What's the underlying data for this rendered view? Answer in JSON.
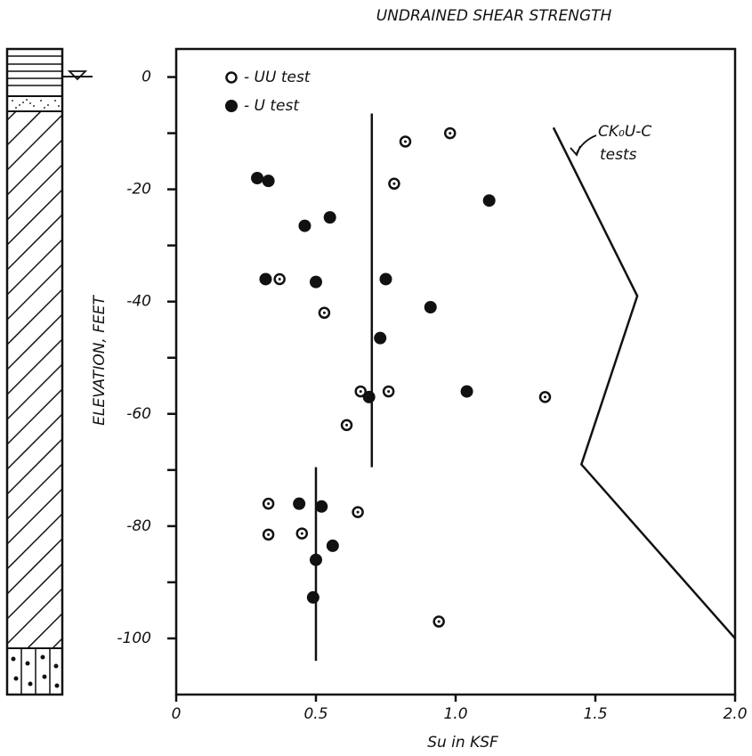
{
  "chart_data": {
    "type": "scatter",
    "title": "UNDRAINED SHEAR STRENGTH",
    "x_label": "Su in KSF",
    "y_label": "ELEVATION, FEET",
    "xlim": [
      0,
      2.0
    ],
    "ylim": [
      -110,
      5
    ],
    "xticks": [
      0,
      0.5,
      {
        "value": 1.0,
        "label": "1.0"
      },
      1.5,
      {
        "value": 2.0,
        "label": "2.0"
      }
    ],
    "yticks": [
      0,
      -20,
      -40,
      -60,
      -80,
      -100
    ],
    "y_minor_ticks": [
      -10,
      -30,
      -50,
      -70,
      -90
    ],
    "series": [
      {
        "name": "- UU test",
        "marker": "open",
        "color": "#111111",
        "x": [
          0.82,
          0.98,
          0.78,
          0.37,
          0.53,
          0.66,
          0.76,
          1.32,
          0.61,
          0.33,
          0.65,
          0.33,
          0.45,
          0.94
        ],
        "values": [
          -11.5,
          -10,
          -19,
          -36,
          -42,
          -56,
          -56,
          -57,
          -62,
          -76,
          -77.5,
          -81.5,
          -81.3,
          -97
        ]
      },
      {
        "name": "- U test",
        "marker": "filled",
        "color": "#111111",
        "x": [
          0.29,
          0.33,
          1.12,
          0.55,
          0.46,
          0.32,
          0.5,
          0.75,
          0.91,
          0.73,
          1.04,
          0.69,
          0.44,
          0.52,
          0.56,
          0.5,
          0.49
        ],
        "values": [
          -18,
          -18.5,
          -22,
          -25,
          -26.5,
          -36,
          -36.5,
          -36,
          -41,
          -46.5,
          -56,
          -57,
          -76,
          -76.5,
          -83.5,
          -86,
          -92.7
        ]
      }
    ],
    "lines": [
      {
        "x": [
          0.7,
          0.7
        ],
        "values": [
          -6.5,
          -69.5
        ]
      },
      {
        "x": [
          0.5,
          0.5
        ],
        "values": [
          -69.5,
          -104
        ]
      },
      {
        "x": [
          1.35,
          1.65,
          1.45,
          2.0
        ],
        "values": [
          -9,
          -39,
          -69,
          -100
        ]
      }
    ],
    "annotation": [
      "CK₀U-C",
      "tests"
    ]
  }
}
